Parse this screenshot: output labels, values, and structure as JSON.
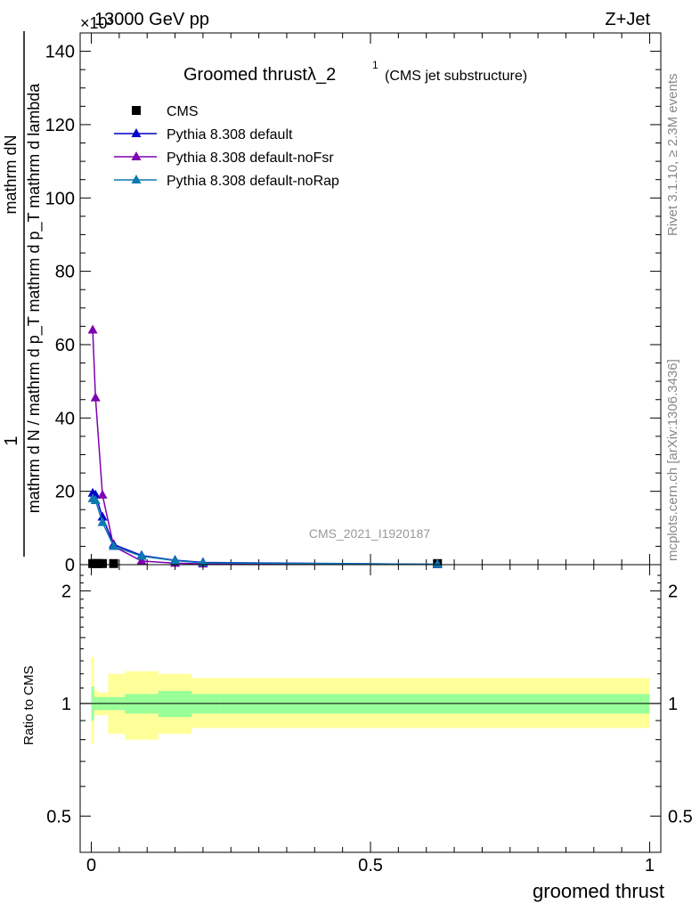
{
  "header": {
    "left": "13000 GeV pp",
    "right": "Z+Jet",
    "exponent": "×10³"
  },
  "side_labels": {
    "rivet": "Rivet 3.1.10, ≥ 2.3M events",
    "mcplots": "mcplots.cern.ch [arXiv:1306.3436]"
  },
  "watermark": "CMS_2021_I1920187",
  "chart_data": [
    {
      "type": "line",
      "title": "Groomed thrustλ_2",
      "title_sup": "1",
      "title_sub": "(CMS jet substructure)",
      "ylabel": {
        "prefix": "1",
        "num": "mathrm dN",
        "den": "mathrm d N / mathrm d p_T mathrm d p_T mathrm d lambda"
      },
      "xlim": [
        -0.02,
        1.02
      ],
      "ylim": [
        0,
        145
      ],
      "y_scale_label": "×10³",
      "yticks": [
        0,
        20,
        40,
        60,
        80,
        100,
        120,
        140
      ],
      "xticks": [
        0,
        0.5,
        1
      ],
      "legend_position": "top-left",
      "series": [
        {
          "name": "CMS",
          "color": "#000000",
          "marker": "square",
          "x": [
            0.0025,
            0.0075,
            0.0125,
            0.02,
            0.04,
            0.62
          ],
          "y": [
            0.3,
            0.3,
            0.3,
            0.3,
            0.3,
            0.3
          ]
        },
        {
          "name": "Pythia 8.308 default",
          "color": "#0000cc",
          "marker": "triangle",
          "x": [
            0.0025,
            0.0075,
            0.02,
            0.04,
            0.09,
            0.15,
            0.2,
            0.62
          ],
          "y": [
            19.5,
            19,
            13,
            5.5,
            2.5,
            1.2,
            0.6,
            0.1
          ]
        },
        {
          "name": "Pythia 8.308 default-noFsr",
          "color": "#7f00b2",
          "marker": "triangle",
          "x": [
            0.0025,
            0.0075,
            0.02,
            0.04,
            0.09,
            0.15,
            0.2,
            0.62
          ],
          "y": [
            64,
            45.5,
            19,
            5,
            1,
            0.4,
            0.2,
            0.05
          ]
        },
        {
          "name": "Pythia 8.308 default-noRap",
          "color": "#0a7ab0",
          "marker": "triangle",
          "x": [
            0.0025,
            0.0075,
            0.02,
            0.04,
            0.09,
            0.15,
            0.2,
            0.62
          ],
          "y": [
            18,
            17.5,
            11.5,
            5,
            2.3,
            1.1,
            0.5,
            0.1
          ]
        }
      ]
    },
    {
      "type": "area",
      "ylabel": "Ratio to CMS",
      "xlabel": "groomed thrust",
      "xlim": [
        -0.02,
        1.02
      ],
      "ylim": [
        0.4,
        2.35
      ],
      "y_scale": "log",
      "yticks": [
        0.5,
        1,
        2
      ],
      "xticks": [
        0,
        0.5,
        1
      ],
      "reference_line": 1,
      "bins": [
        0,
        0.005,
        0.01,
        0.03,
        0.06,
        0.12,
        0.18,
        0.23,
        1.0
      ],
      "inner_band": {
        "color": "#99ff99",
        "lower": [
          0.9,
          0.96,
          0.96,
          0.96,
          0.94,
          0.92,
          0.94,
          0.94
        ],
        "upper": [
          1.11,
          1.04,
          1.04,
          1.04,
          1.06,
          1.08,
          1.06,
          1.06
        ]
      },
      "outer_band": {
        "color": "#ffff99",
        "lower": [
          0.78,
          0.93,
          0.93,
          0.83,
          0.8,
          0.83,
          0.86,
          0.86
        ],
        "upper": [
          1.33,
          1.09,
          1.07,
          1.2,
          1.22,
          1.2,
          1.17,
          1.17
        ]
      }
    }
  ]
}
